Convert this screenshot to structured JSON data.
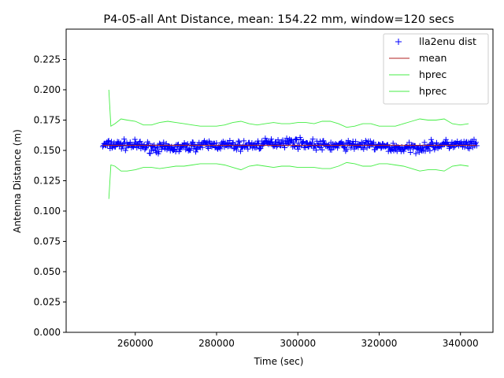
{
  "chart_data": {
    "type": "scatter",
    "title": "P4-05-all Ant Distance, mean: 154.22 mm, window=120 secs",
    "xlabel": "Time (sec)",
    "ylabel": "Antenna Distance (m)",
    "xlim": [
      243000,
      348000
    ],
    "ylim": [
      0.0,
      0.25
    ],
    "xticks": [
      260000,
      280000,
      300000,
      320000,
      340000
    ],
    "xtick_labels": [
      "260000",
      "280000",
      "300000",
      "320000",
      "340000"
    ],
    "yticks": [
      0.0,
      0.025,
      0.05,
      0.075,
      0.1,
      0.125,
      0.15,
      0.175,
      0.2,
      0.225
    ],
    "ytick_labels": [
      "0.000",
      "0.025",
      "0.050",
      "0.075",
      "0.100",
      "0.125",
      "0.150",
      "0.175",
      "0.200",
      "0.225"
    ],
    "grid": false,
    "legend_position": "top-right",
    "colors": {
      "dist": "#0000ff",
      "mean": "#b22222",
      "hprec": "#44ee44"
    },
    "series": [
      {
        "name": "lla2enu dist",
        "kind": "scatter-plus",
        "x_range": [
          252000,
          344000
        ],
        "center": 0.1542,
        "spread": 0.004,
        "count": 560
      },
      {
        "name": "mean",
        "kind": "line",
        "x": [
          252000,
          344000
        ],
        "y": [
          0.15422,
          0.15422
        ]
      },
      {
        "name": "hprec",
        "kind": "line",
        "x": [
          253500,
          254000,
          255000,
          256500,
          258000,
          260000,
          262000,
          264000,
          266000,
          268000,
          270000,
          272000,
          274000,
          276000,
          278000,
          280000,
          282000,
          284000,
          286000,
          288000,
          290000,
          292000,
          294000,
          296000,
          298000,
          300000,
          302000,
          304000,
          306000,
          308000,
          310000,
          312000,
          314000,
          316000,
          318000,
          320000,
          322000,
          324000,
          326000,
          328000,
          330000,
          332000,
          334000,
          336000,
          338000,
          340000,
          342000
        ],
        "y": [
          0.2,
          0.17,
          0.172,
          0.176,
          0.175,
          0.174,
          0.171,
          0.171,
          0.173,
          0.174,
          0.173,
          0.172,
          0.171,
          0.17,
          0.17,
          0.17,
          0.171,
          0.173,
          0.174,
          0.172,
          0.171,
          0.172,
          0.173,
          0.172,
          0.172,
          0.173,
          0.173,
          0.172,
          0.174,
          0.174,
          0.172,
          0.169,
          0.17,
          0.172,
          0.172,
          0.17,
          0.17,
          0.17,
          0.172,
          0.174,
          0.176,
          0.175,
          0.175,
          0.176,
          0.172,
          0.171,
          0.172
        ]
      },
      {
        "name": "hprec",
        "kind": "line",
        "x": [
          253500,
          254000,
          255000,
          256500,
          258000,
          260000,
          262000,
          264000,
          266000,
          268000,
          270000,
          272000,
          274000,
          276000,
          278000,
          280000,
          282000,
          284000,
          286000,
          288000,
          290000,
          292000,
          294000,
          296000,
          298000,
          300000,
          302000,
          304000,
          306000,
          308000,
          310000,
          312000,
          314000,
          316000,
          318000,
          320000,
          322000,
          324000,
          326000,
          328000,
          330000,
          332000,
          334000,
          336000,
          338000,
          340000,
          342000
        ],
        "y": [
          0.11,
          0.138,
          0.137,
          0.133,
          0.133,
          0.134,
          0.136,
          0.136,
          0.135,
          0.136,
          0.137,
          0.137,
          0.138,
          0.139,
          0.139,
          0.139,
          0.138,
          0.136,
          0.134,
          0.137,
          0.138,
          0.137,
          0.136,
          0.137,
          0.137,
          0.136,
          0.136,
          0.136,
          0.135,
          0.135,
          0.137,
          0.14,
          0.139,
          0.137,
          0.137,
          0.139,
          0.139,
          0.138,
          0.137,
          0.135,
          0.133,
          0.134,
          0.134,
          0.133,
          0.137,
          0.138,
          0.137
        ]
      }
    ]
  }
}
